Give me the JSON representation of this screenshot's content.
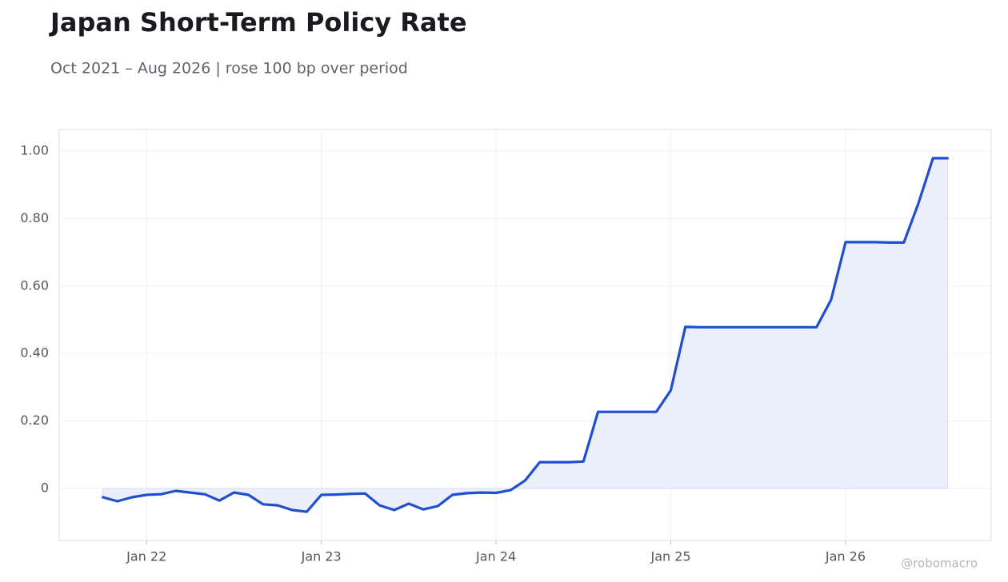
{
  "chart_data": {
    "type": "line",
    "title": "Japan Short-Term Policy Rate",
    "subtitle": "Oct 2021 – Aug 2026 | rose 100 bp over period",
    "watermark": "@robomacro",
    "x": [
      "2021-10",
      "2021-11",
      "2021-12",
      "2022-01",
      "2022-02",
      "2022-03",
      "2022-04",
      "2022-05",
      "2022-06",
      "2022-07",
      "2022-08",
      "2022-09",
      "2022-10",
      "2022-11",
      "2022-12",
      "2023-01",
      "2023-02",
      "2023-03",
      "2023-04",
      "2023-05",
      "2023-06",
      "2023-07",
      "2023-08",
      "2023-09",
      "2023-10",
      "2023-11",
      "2023-12",
      "2024-01",
      "2024-02",
      "2024-03",
      "2024-04",
      "2024-05",
      "2024-06",
      "2024-07",
      "2024-08",
      "2024-09",
      "2024-10",
      "2024-11",
      "2024-12",
      "2025-01",
      "2025-02",
      "2025-03",
      "2025-04",
      "2025-05",
      "2025-06",
      "2025-07",
      "2025-08",
      "2025-09",
      "2025-10",
      "2025-11",
      "2025-12",
      "2026-01",
      "2026-02",
      "2026-03",
      "2026-04",
      "2026-05",
      "2026-06",
      "2026-07",
      "2026-08"
    ],
    "series": [
      {
        "name": "Japan Short-Term Policy Rate",
        "color": "#1f4fcc",
        "fill": "#eaeffb",
        "values": [
          -0.026,
          -0.038,
          -0.026,
          -0.019,
          -0.017,
          -0.007,
          -0.012,
          -0.017,
          -0.036,
          -0.012,
          -0.019,
          -0.047,
          -0.05,
          -0.064,
          -0.069,
          -0.019,
          -0.018,
          -0.016,
          -0.015,
          -0.05,
          -0.064,
          -0.045,
          -0.062,
          -0.052,
          -0.019,
          -0.014,
          -0.012,
          -0.013,
          -0.005,
          0.024,
          0.078,
          0.078,
          0.078,
          0.08,
          0.227,
          0.227,
          0.227,
          0.227,
          0.227,
          0.291,
          0.479,
          0.478,
          0.478,
          0.478,
          0.478,
          0.478,
          0.478,
          0.478,
          0.478,
          0.478,
          0.559,
          0.73,
          0.73,
          0.73,
          0.729,
          0.729,
          0.845,
          0.979,
          0.979
        ]
      }
    ],
    "xlim": [
      "2021-07",
      "2026-11"
    ],
    "xticks": [
      {
        "value": "2022-01",
        "label": "Jan 22"
      },
      {
        "value": "2023-01",
        "label": "Jan 23"
      },
      {
        "value": "2024-01",
        "label": "Jan 24"
      },
      {
        "value": "2025-01",
        "label": "Jan 25"
      },
      {
        "value": "2026-01",
        "label": "Jan 26"
      }
    ],
    "ylim": [
      -0.154,
      1.064
    ],
    "yticks": [
      0,
      {
        "value": 0.2,
        "label": "0.20"
      },
      {
        "value": 0.4,
        "label": "0.40"
      },
      {
        "value": 0.6,
        "label": "0.60"
      },
      {
        "value": 0.8,
        "label": "0.80"
      },
      {
        "value": 1.0,
        "label": "1.00"
      }
    ],
    "grid": true
  }
}
